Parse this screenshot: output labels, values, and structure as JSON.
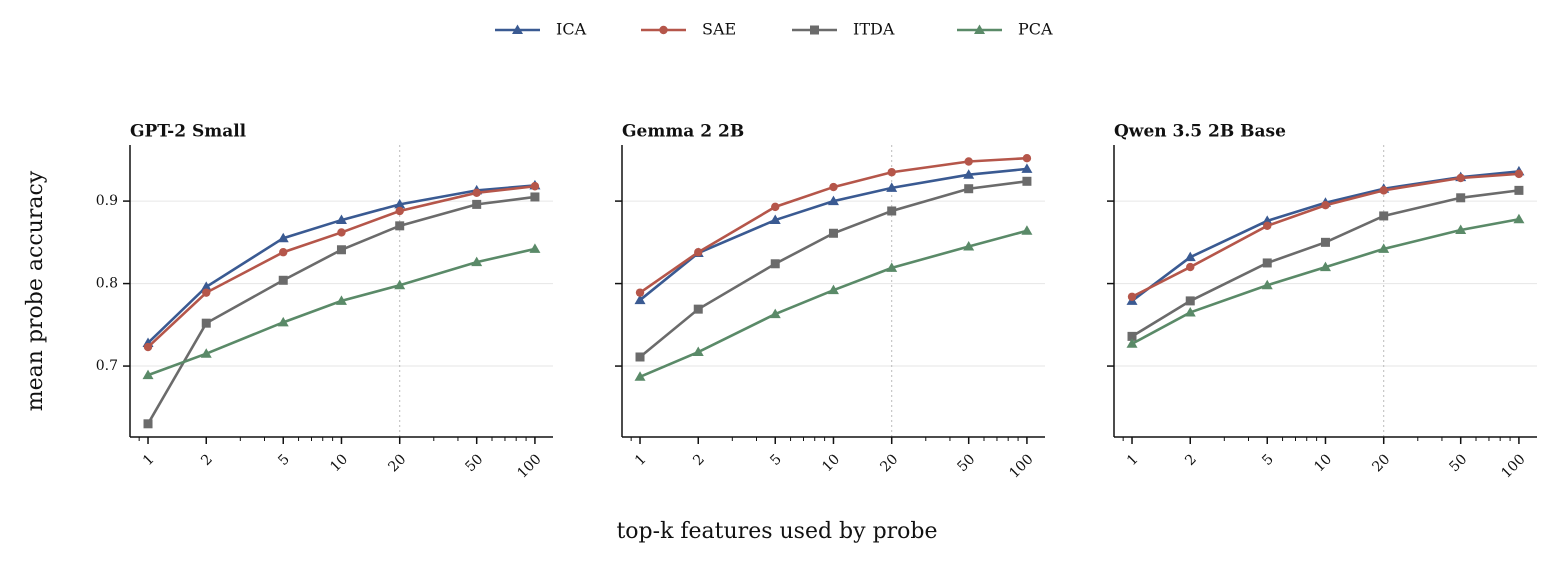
{
  "chart_data": [
    {
      "type": "line",
      "title": "GPT-2 Small",
      "ylabel": "mean probe accuracy",
      "x": [
        1,
        2,
        5,
        10,
        20,
        50,
        100
      ],
      "xscale": "log",
      "xlim": [
        0.807,
        124
      ],
      "xticks": [
        1,
        2,
        5,
        10,
        20,
        50,
        100
      ],
      "ylim": [
        0.614,
        0.968
      ],
      "yticks": [
        0.7,
        0.8,
        0.9
      ],
      "grid": true,
      "vline": 20,
      "legend": "upper center",
      "series": [
        {
          "name": "ICA",
          "color": "#3a5a92",
          "marker": "triangle",
          "values": [
            0.728,
            0.796,
            0.855,
            0.877,
            0.896,
            0.913,
            0.919
          ]
        },
        {
          "name": "SAE",
          "color": "#b5564a",
          "marker": "circle",
          "values": [
            0.723,
            0.789,
            0.838,
            0.862,
            0.888,
            0.91,
            0.918
          ]
        },
        {
          "name": "ITDA",
          "color": "#6b6b6b",
          "marker": "square",
          "values": [
            0.63,
            0.752,
            0.804,
            0.841,
            0.87,
            0.896,
            0.905
          ]
        },
        {
          "name": "PCA",
          "color": "#5a8a68",
          "marker": "triangle",
          "values": [
            0.689,
            0.715,
            0.753,
            0.779,
            0.798,
            0.826,
            0.842
          ]
        }
      ]
    },
    {
      "type": "line",
      "title": "Gemma 2 2B",
      "xlabel": "top-k features used by probe",
      "x": [
        1,
        2,
        5,
        10,
        20,
        50,
        100
      ],
      "xscale": "log",
      "xlim": [
        0.807,
        124
      ],
      "xticks": [
        1,
        2,
        5,
        10,
        20,
        50,
        100
      ],
      "ylim": [
        0.614,
        0.968
      ],
      "yticks": [
        0.7,
        0.8,
        0.9
      ],
      "grid": true,
      "vline": 20,
      "series": [
        {
          "name": "ICA",
          "color": "#3a5a92",
          "marker": "triangle",
          "values": [
            0.78,
            0.837,
            0.877,
            0.9,
            0.916,
            0.932,
            0.939
          ]
        },
        {
          "name": "SAE",
          "color": "#b5564a",
          "marker": "circle",
          "values": [
            0.789,
            0.838,
            0.893,
            0.917,
            0.935,
            0.948,
            0.952
          ]
        },
        {
          "name": "ITDA",
          "color": "#6b6b6b",
          "marker": "square",
          "values": [
            0.711,
            0.769,
            0.824,
            0.861,
            0.888,
            0.915,
            0.924
          ]
        },
        {
          "name": "PCA",
          "color": "#5a8a68",
          "marker": "triangle",
          "values": [
            0.687,
            0.717,
            0.763,
            0.792,
            0.819,
            0.845,
            0.864
          ]
        }
      ]
    },
    {
      "type": "line",
      "title": "Qwen 3.5 2B Base",
      "x": [
        1,
        2,
        5,
        10,
        20,
        50,
        100
      ],
      "xscale": "log",
      "xlim": [
        0.807,
        124
      ],
      "xticks": [
        1,
        2,
        5,
        10,
        20,
        50,
        100
      ],
      "ylim": [
        0.614,
        0.968
      ],
      "yticks": [
        0.7,
        0.8,
        0.9
      ],
      "grid": true,
      "vline": 20,
      "series": [
        {
          "name": "ICA",
          "color": "#3a5a92",
          "marker": "triangle",
          "values": [
            0.779,
            0.832,
            0.876,
            0.898,
            0.915,
            0.929,
            0.936
          ]
        },
        {
          "name": "SAE",
          "color": "#b5564a",
          "marker": "circle",
          "values": [
            0.784,
            0.82,
            0.87,
            0.895,
            0.913,
            0.928,
            0.933
          ]
        },
        {
          "name": "ITDA",
          "color": "#6b6b6b",
          "marker": "square",
          "values": [
            0.736,
            0.779,
            0.825,
            0.85,
            0.882,
            0.904,
            0.913
          ]
        },
        {
          "name": "PCA",
          "color": "#5a8a68",
          "marker": "triangle",
          "values": [
            0.727,
            0.765,
            0.798,
            0.82,
            0.842,
            0.865,
            0.878
          ]
        }
      ]
    }
  ]
}
